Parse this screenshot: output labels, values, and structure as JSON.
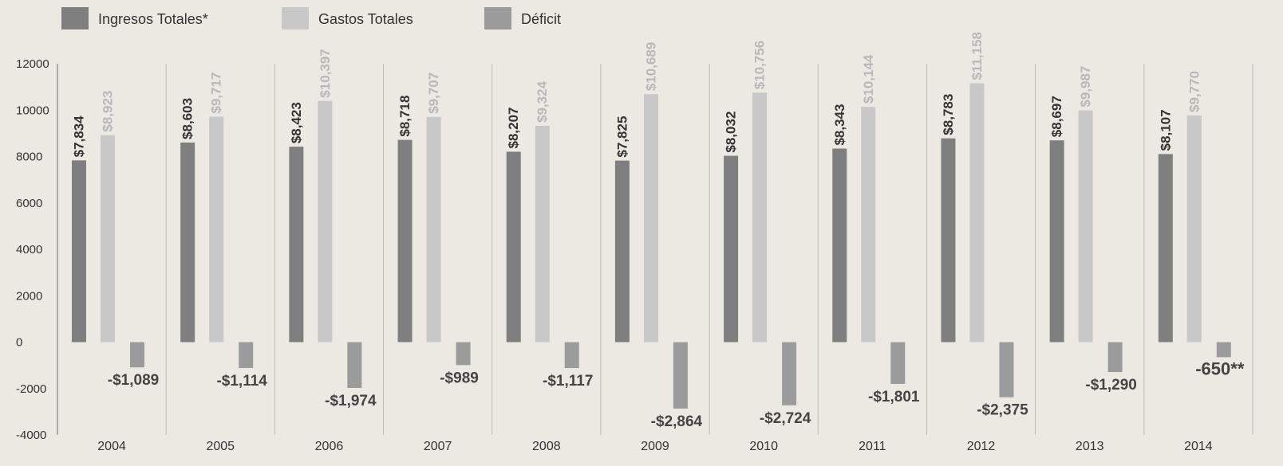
{
  "chart_data": {
    "type": "bar",
    "title": "",
    "xlabel": "",
    "ylabel": "",
    "ylim": [
      -4000,
      12000
    ],
    "y_ticks": [
      "12000",
      "10000",
      "8000",
      "6000",
      "4000",
      "2000",
      "0",
      "-2000",
      "-4000"
    ],
    "y_tick_values": [
      12000,
      10000,
      8000,
      6000,
      4000,
      2000,
      0,
      -2000,
      -4000
    ],
    "grid": "vertical separators",
    "legend_position": "top-left",
    "categories": [
      "2004",
      "2005",
      "2006",
      "2007",
      "2008",
      "2009",
      "2010",
      "2011",
      "2012",
      "2013",
      "2014"
    ],
    "series": [
      {
        "name": "Ingresos Totales*",
        "color": "#7f7f7f",
        "values": [
          7834,
          8603,
          8423,
          8718,
          8207,
          7825,
          8032,
          8343,
          8783,
          8697,
          8107
        ],
        "labels": [
          "$7,834",
          "$8,603",
          "$8,423",
          "$8,718",
          "$8,207",
          "$7,825",
          "$8,032",
          "$8,343",
          "$8,783",
          "$8,697",
          "$8,107"
        ]
      },
      {
        "name": "Gastos Totales",
        "color": "#c8c8c8",
        "values": [
          8923,
          9717,
          10397,
          9707,
          9324,
          10689,
          10756,
          10144,
          11158,
          9987,
          9770
        ],
        "labels": [
          "$8,923",
          "$9,717",
          "$10,397",
          "$9,707",
          "$9,324",
          "$10,689",
          "$10,756",
          "$10,144",
          "$11,158",
          "$9,987",
          "$9,770"
        ]
      },
      {
        "name": "Déficit",
        "color": "#9b9b9b",
        "values": [
          -1089,
          -1114,
          -1974,
          -989,
          -1117,
          -2864,
          -2724,
          -1801,
          -2375,
          -1290,
          -650
        ],
        "labels": [
          "-$1,089",
          "-$1,114",
          "-$1,974",
          "-$989",
          "-$1,117",
          "-$2,864",
          "-$2,724",
          "-$1,801",
          "-$2,375",
          "-$1,290",
          "-650**"
        ]
      }
    ]
  }
}
